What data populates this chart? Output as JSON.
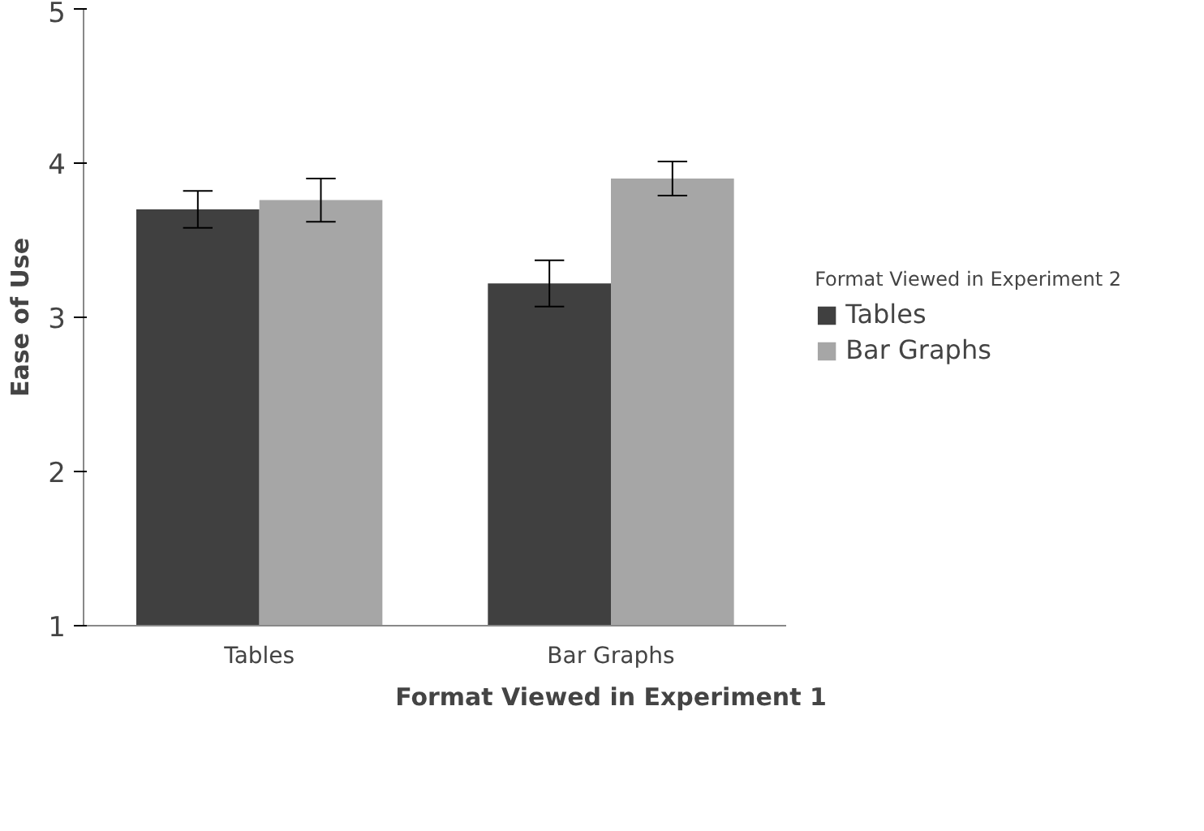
{
  "chart_data": {
    "type": "bar",
    "xlabel": "Format Viewed in Experiment 1",
    "ylabel": "Ease of Use",
    "legend_title": "Format Viewed in Experiment 2",
    "categories": [
      "Tables",
      "Bar Graphs"
    ],
    "series": [
      {
        "name": "Tables",
        "color": "#404040",
        "values": [
          3.7,
          3.22
        ],
        "errors": [
          0.12,
          0.15
        ]
      },
      {
        "name": "Bar Graphs",
        "color": "#a6a6a6",
        "values": [
          3.76,
          3.9
        ],
        "errors": [
          0.14,
          0.11
        ]
      }
    ],
    "ylim": [
      1,
      5
    ],
    "yticks": [
      1,
      2,
      3,
      4,
      5
    ],
    "grid": false,
    "legend": "right"
  }
}
